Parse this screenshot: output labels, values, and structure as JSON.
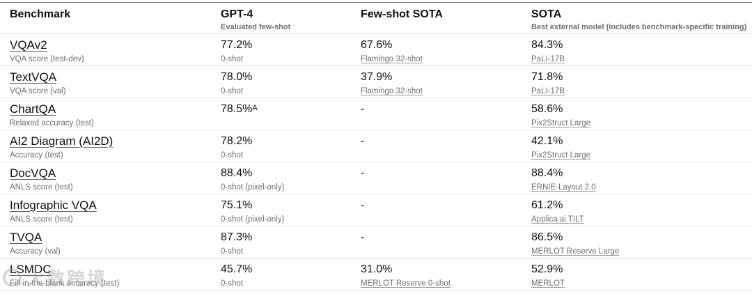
{
  "header": {
    "columns": [
      {
        "label": "Benchmark",
        "sublabel": ""
      },
      {
        "label": "GPT-4",
        "sublabel": "Evaluated few-shot"
      },
      {
        "label": "Few-shot SOTA",
        "sublabel": ""
      },
      {
        "label": "SOTA",
        "sublabel": "Best external model (includes benchmark-specific training)"
      }
    ]
  },
  "rows": [
    {
      "benchmark": "VQAv2",
      "metric": "VQA score (test-dev)",
      "gpt4_value": "77.2%",
      "gpt4_note": "0-shot",
      "fewshot_value": "67.6%",
      "fewshot_model": "Flamingo 32-shot",
      "sota_value": "84.3%",
      "sota_model": "PaLI-17B"
    },
    {
      "benchmark": "TextVQA",
      "metric": "VQA score (val)",
      "gpt4_value": "78.0%",
      "gpt4_note": "0-shot",
      "fewshot_value": "37.9%",
      "fewshot_model": "Flamingo 32-shot",
      "sota_value": "71.8%",
      "sota_model": "PaLI-17B"
    },
    {
      "benchmark": "ChartQA",
      "metric": "Relaxed accuracy (test)",
      "gpt4_value": "78.5%",
      "gpt4_sup": "A",
      "gpt4_note": "",
      "fewshot_value": "-",
      "fewshot_model": "",
      "sota_value": "58.6%",
      "sota_model": "Pix2Struct Large"
    },
    {
      "benchmark": "AI2 Diagram (AI2D)",
      "metric": "Accuracy (test)",
      "gpt4_value": "78.2%",
      "gpt4_note": "0-shot",
      "fewshot_value": "-",
      "fewshot_model": "",
      "sota_value": "42.1%",
      "sota_model": "Pix2Struct Large"
    },
    {
      "benchmark": "DocVQA",
      "metric": "ANLS score (test)",
      "gpt4_value": "88.4%",
      "gpt4_note": "0-shot (pixel-only)",
      "fewshot_value": "-",
      "fewshot_model": "",
      "sota_value": "88.4%",
      "sota_model": "ERNIE-Layout 2.0"
    },
    {
      "benchmark": "Infographic VQA",
      "metric": "ANLS score (test)",
      "gpt4_value": "75.1%",
      "gpt4_note": "0-shot (pixel-only)",
      "fewshot_value": "-",
      "fewshot_model": "",
      "sota_value": "61.2%",
      "sota_model": "Applica.ai TILT"
    },
    {
      "benchmark": "TVQA",
      "metric": "Accuracy (val)",
      "gpt4_value": "87.3%",
      "gpt4_note": "0-shot",
      "fewshot_value": "-",
      "fewshot_model": "",
      "sota_value": "86.5%",
      "sota_model": "MERLOT Reserve Large"
    },
    {
      "benchmark": "LSMDC",
      "metric": "Fill-in-the-blank accuracy (test)",
      "gpt4_value": "45.7%",
      "gpt4_note": "0-shot",
      "fewshot_value": "31.0%",
      "fewshot_model": "MERLOT Reserve 0-shot",
      "sota_value": "52.9%",
      "sota_model": "MERLOT"
    }
  ],
  "watermark": {
    "text": "大数跨境"
  }
}
